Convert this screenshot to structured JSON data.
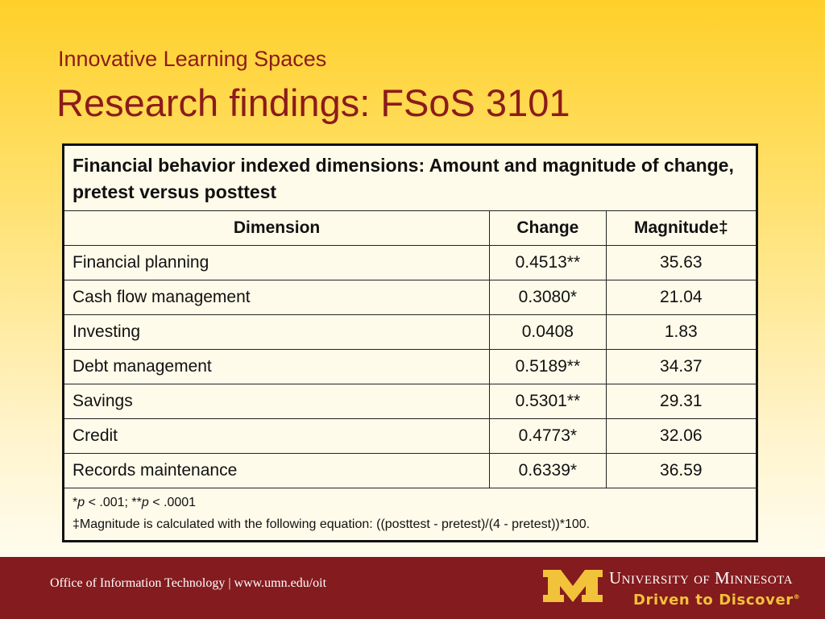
{
  "slide": {
    "subtitle": "Innovative Learning Spaces",
    "title": "Research findings: FSoS 3101"
  },
  "table": {
    "caption": "Financial behavior indexed dimensions: Amount and magnitude of change, pretest versus posttest",
    "headers": [
      "Dimension",
      "Change",
      "Magnitude‡"
    ],
    "rows": [
      {
        "dimension": "Financial planning",
        "change": "0.4513**",
        "magnitude": "35.63"
      },
      {
        "dimension": "Cash flow management",
        "change": "0.3080*",
        "magnitude": "21.04"
      },
      {
        "dimension": "Investing",
        "change": "0.0408",
        "magnitude": "1.83"
      },
      {
        "dimension": "Debt management",
        "change": "0.5189**",
        "magnitude": "34.37"
      },
      {
        "dimension": "Savings",
        "change": "0.5301**",
        "magnitude": "29.31"
      },
      {
        "dimension": "Credit",
        "change": "0.4773*",
        "magnitude": "32.06"
      },
      {
        "dimension": "Records maintenance",
        "change": "0.6339*",
        "magnitude": "36.59"
      }
    ],
    "notes": {
      "sig1_star": "*",
      "p": "p",
      "sig1_value": " < .001; ",
      "sig2_star": "**",
      "sig2_value": " < .0001",
      "magnitude_note": "‡Magnitude is calculated with the following equation:  ((posttest - pretest)/(4 - pretest))*100."
    }
  },
  "footer": {
    "office": "Office of Information Technology",
    "separator": " | ",
    "url": "www.umn.edu/oit",
    "university": "University of Minnesota",
    "slogan": "Driven to Discover",
    "trademark": "®",
    "logo_icon": "block-m-logo-icon",
    "colors": {
      "maroon": "#841b1e",
      "gold": "#f2c23a"
    }
  }
}
